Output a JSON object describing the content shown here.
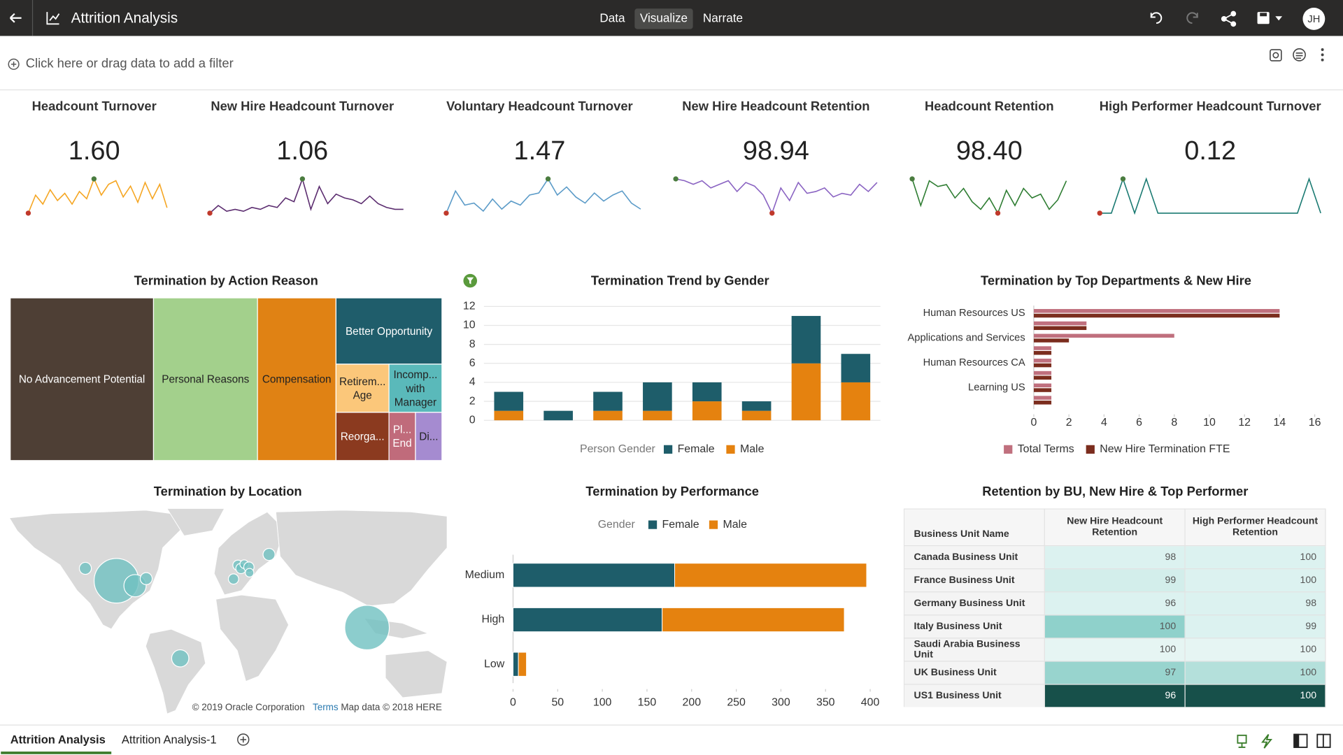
{
  "header": {
    "title": "Attrition Analysis",
    "nav": [
      "Data",
      "Visualize",
      "Narrate"
    ],
    "active_nav": 1,
    "user_initials": "JH"
  },
  "filter_bar": {
    "placeholder": "Click here or drag data to add a filter"
  },
  "kpis": [
    {
      "title": "Headcount Turnover",
      "value": "1.60",
      "color": "#f5a623",
      "sparkline": [
        2,
        22,
        12,
        28,
        16,
        24,
        12,
        26,
        18,
        40,
        22,
        34,
        38,
        20,
        32,
        14,
        36,
        18,
        34,
        8
      ]
    },
    {
      "title": "New Hire Headcount Turnover",
      "value": "1.06",
      "color": "#5b2c6f",
      "sparkline": [
        2,
        10,
        4,
        6,
        4,
        8,
        6,
        10,
        8,
        18,
        14,
        38,
        6,
        30,
        12,
        22,
        18,
        16,
        12,
        20,
        12,
        8,
        6,
        6
      ]
    },
    {
      "title": "Voluntary Headcount Turnover",
      "value": "1.47",
      "color": "#5b9bc8",
      "sparkline": [
        4,
        26,
        12,
        14,
        6,
        18,
        8,
        16,
        12,
        22,
        24,
        38,
        22,
        30,
        20,
        14,
        24,
        16,
        22,
        26,
        14,
        8
      ]
    },
    {
      "title": "New Hire Headcount Retention",
      "value": "98.94",
      "color": "#8a63c2",
      "sparkline": [
        40,
        38,
        34,
        38,
        30,
        34,
        38,
        26,
        36,
        32,
        22,
        2,
        30,
        16,
        36,
        24,
        26,
        30,
        20,
        24,
        22,
        34,
        26,
        36
      ]
    },
    {
      "title": "Headcount Retention",
      "value": "98.40",
      "color": "#2e7d32",
      "sparkline": [
        38,
        10,
        36,
        30,
        32,
        18,
        28,
        14,
        6,
        18,
        2,
        26,
        10,
        28,
        18,
        22,
        6,
        16,
        36
      ]
    },
    {
      "title": "High Performer Headcount Turnover",
      "value": "0.12",
      "color": "#1a7a72",
      "sparkline": [
        2,
        2,
        38,
        2,
        38,
        2,
        2,
        2,
        2,
        2,
        2,
        2,
        2,
        2,
        2,
        2,
        2,
        2,
        38,
        2
      ]
    }
  ],
  "chart_data": [
    {
      "type": "treemap",
      "title": "Termination by Action Reason",
      "categories": [
        "No Advancement Potential",
        "Personal Reasons",
        "Compensation",
        "Better Opportunity",
        "Retirem... Age",
        "Incomp... with Manager",
        "Reorga...",
        "Pl... End",
        "Di..."
      ],
      "values": [
        73,
        53,
        40,
        22,
        8,
        8,
        8,
        4,
        4
      ],
      "colors": [
        "#4e3f35",
        "#a3d08c",
        "#e08214",
        "#1f5d6b",
        "#fbc77a",
        "#5ab9ba",
        "#8b3a1f",
        "#c06b7b",
        "#a58bd0"
      ]
    },
    {
      "type": "bar",
      "orientation": "vertical",
      "stacked": true,
      "title": "Termination Trend by Gender",
      "categories": [
        null,
        null,
        null,
        null,
        null,
        null,
        null,
        null
      ],
      "series": [
        {
          "name": "Female",
          "color": "#1e5d6a",
          "values": [
            2,
            1,
            2,
            3,
            2,
            1,
            5,
            3
          ]
        },
        {
          "name": "Male",
          "color": "#e5820f",
          "values": [
            1,
            0,
            1,
            1,
            2,
            1,
            6,
            4
          ]
        }
      ],
      "legend_title": "Person Gender",
      "ylim": [
        0,
        12
      ],
      "yticks": [
        0,
        2,
        4,
        6,
        8,
        10,
        12
      ],
      "grid": true
    },
    {
      "type": "bar",
      "orientation": "horizontal",
      "stacked": false,
      "title": "Termination by Top Departments & New Hire",
      "categories": [
        "Human Resources US",
        null,
        "Applications and Services",
        null,
        "Human Resources CA",
        null,
        "Learning US",
        null
      ],
      "series": [
        {
          "name": "Total Terms",
          "color": "#c0707e",
          "values": [
            14,
            3,
            8,
            1,
            1,
            1,
            1,
            1
          ]
        },
        {
          "name": "New Hire Termination FTE",
          "color": "#7b2d1e",
          "values": [
            14,
            3,
            2,
            1,
            1,
            1,
            1,
            1
          ]
        }
      ],
      "xlim": [
        0,
        16
      ],
      "xticks": [
        0,
        2,
        4,
        6,
        8,
        10,
        12,
        14,
        16
      ],
      "grid": false
    },
    {
      "type": "map",
      "title": "Termination by Location",
      "color": "#6fc1c1",
      "lon": [
        -98,
        -83,
        -74,
        -123,
        -0.1,
        2.3,
        4.9,
        8.7,
        24.9,
        -3.7,
        9.2,
        103.8,
        -46.6
      ],
      "lat": [
        39,
        35,
        40.7,
        49,
        51.5,
        48.9,
        52.4,
        50,
        60.2,
        40.4,
        45.5,
        1.3,
        -23.5
      ],
      "size": [
        26,
        13,
        7,
        7,
        6,
        6,
        5,
        6,
        7,
        6,
        5,
        26,
        10
      ],
      "attribution": [
        "© 2019 Oracle Corporation",
        "Terms",
        "Map data © 2018 HERE"
      ]
    },
    {
      "type": "bar",
      "orientation": "horizontal",
      "stacked": true,
      "title": "Termination by Performance",
      "categories": [
        "Medium",
        "High",
        "Low"
      ],
      "series": [
        {
          "name": "Female",
          "color": "#1e5d6a",
          "values": [
            181,
            167,
            6
          ]
        },
        {
          "name": "Male",
          "color": "#e5820f",
          "values": [
            215,
            204,
            9
          ]
        }
      ],
      "legend_title": "Gender",
      "xlim": [
        0,
        400
      ],
      "xticks": [
        0,
        50,
        100,
        150,
        200,
        250,
        300,
        350,
        400
      ],
      "grid": false
    }
  ],
  "table": {
    "title": "Retention by BU, New Hire & Top Performer",
    "columns": [
      "Business Unit Name",
      "New Hire Headcount Retention",
      "High Performer Headcount Retention"
    ],
    "rows": [
      [
        "Canada Business Unit",
        98,
        100
      ],
      [
        "France Business Unit",
        99,
        100
      ],
      [
        "Germany Business Unit",
        96,
        98
      ],
      [
        "Italy Business Unit",
        100,
        99
      ],
      [
        "Saudi Arabia Business Unit",
        100,
        100
      ],
      [
        "UK Business Unit",
        97,
        100
      ],
      [
        "US1 Business Unit",
        96,
        100
      ]
    ],
    "cell_colors": [
      [
        "#dcf2f0",
        "#dcf2f0"
      ],
      [
        "#d3eeeb",
        "#dcf2f0"
      ],
      [
        "#dcf2f0",
        "#dcf2f0"
      ],
      [
        "#8fd1cb",
        "#dcf2f0"
      ],
      [
        "#e6f5f3",
        "#e6f5f3"
      ],
      [
        "#98d4ce",
        "#b4e0db"
      ],
      [
        "#17504a",
        "#17504a"
      ]
    ]
  },
  "tabs": {
    "items": [
      "Attrition Analysis",
      "Attrition Analysis-1"
    ],
    "active": 0
  }
}
